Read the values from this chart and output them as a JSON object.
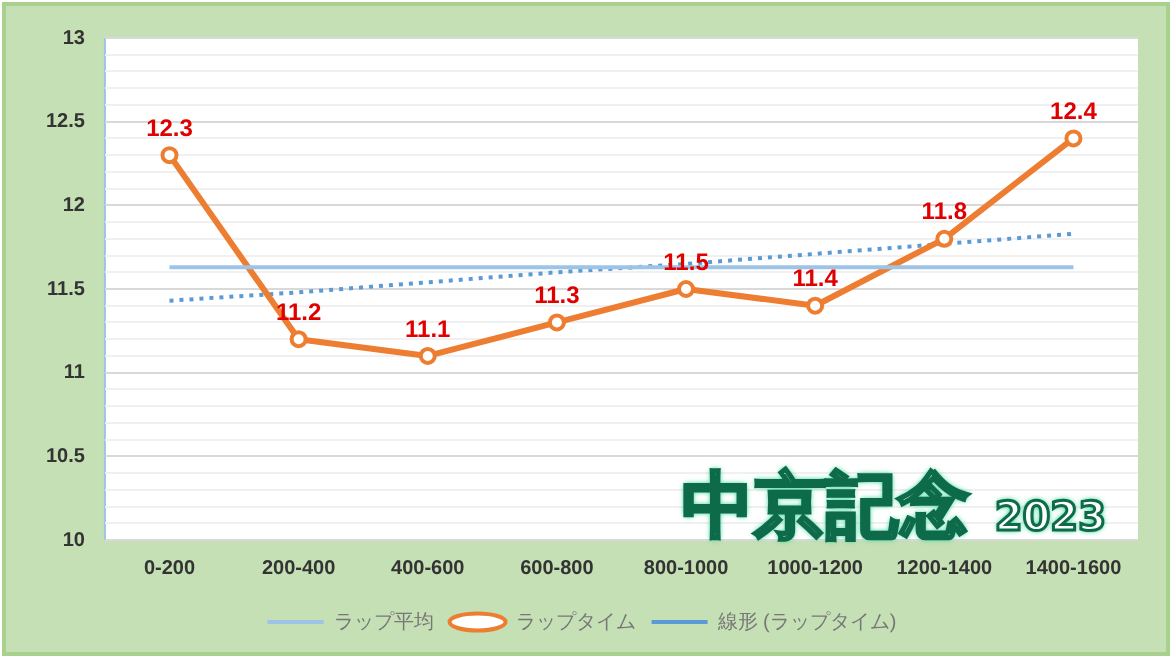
{
  "chart_data": {
    "type": "line",
    "annotations": [
      "中京記念 2023"
    ],
    "categories": [
      "0-200",
      "200-400",
      "400-600",
      "600-800",
      "800-1000",
      "1000-1200",
      "1200-1400",
      "1400-1600"
    ],
    "series": [
      {
        "name": "ラップ平均",
        "color": "#9dc3e6",
        "values": [
          11.63,
          11.63,
          11.63,
          11.63,
          11.63,
          11.63,
          11.63,
          11.63
        ],
        "marker": "none",
        "line_style": "solid"
      },
      {
        "name": "ラップタイム",
        "color": "#ed7d31",
        "values": [
          12.3,
          11.2,
          11.1,
          11.3,
          11.5,
          11.4,
          11.8,
          12.4
        ],
        "marker": "circle",
        "line_style": "solid",
        "value_labels": [
          "12.3",
          "11.2",
          "11.1",
          "11.3",
          "11.5",
          "11.4",
          "11.8",
          "12.4"
        ]
      },
      {
        "name": "線形 (ラップタイム)",
        "color": "#5b9bd5",
        "values": [
          11.43,
          11.48,
          11.54,
          11.6,
          11.65,
          11.71,
          11.77,
          11.83
        ],
        "marker": "none",
        "line_style": "dotted"
      }
    ],
    "ylim": [
      10,
      13
    ],
    "yticks": [
      10,
      {
        "value": 10.1,
        "label": null
      },
      {
        "value": 10.2,
        "label": null
      },
      {
        "value": 10.3,
        "label": null
      },
      {
        "value": 10.4,
        "label": null
      },
      10.5,
      {
        "value": 10.6,
        "label": null
      },
      {
        "value": 10.7,
        "label": null
      },
      {
        "value": 10.8,
        "label": null
      },
      {
        "value": 10.9,
        "label": null
      },
      11,
      {
        "value": 11.1,
        "label": null
      },
      {
        "value": 11.2,
        "label": null
      },
      {
        "value": 11.3,
        "label": null
      },
      {
        "value": 11.4,
        "label": null
      },
      11.5,
      {
        "value": 11.6,
        "label": null
      },
      {
        "value": 11.7,
        "label": null
      },
      {
        "value": 11.8,
        "label": null
      },
      {
        "value": 11.9,
        "label": null
      },
      12,
      {
        "value": 12.1,
        "label": null
      },
      {
        "value": 12.2,
        "label": null
      },
      {
        "value": 12.3,
        "label": null
      },
      {
        "value": 12.4,
        "label": null
      },
      12.5,
      {
        "value": 12.6,
        "label": null
      },
      {
        "value": 12.7,
        "label": null
      },
      {
        "value": 12.8,
        "label": null
      },
      {
        "value": 12.9,
        "label": null
      },
      13
    ],
    "grid": "y",
    "legend": "bottom"
  }
}
